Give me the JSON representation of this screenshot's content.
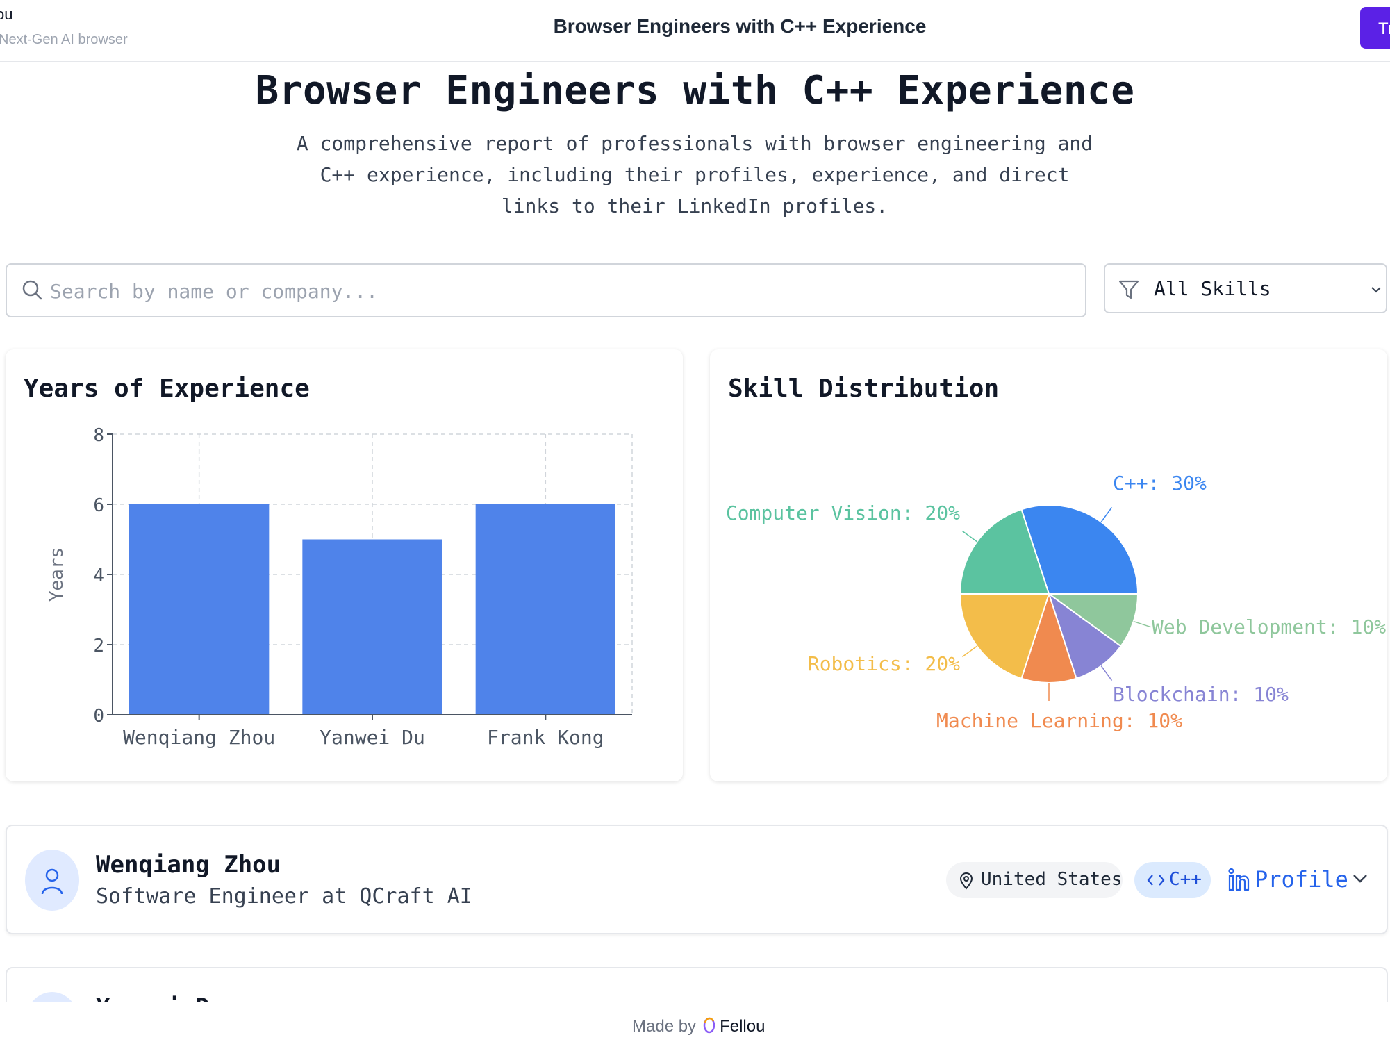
{
  "header": {
    "brand_name": "ou",
    "brand_tagline": "Next-Gen AI browser",
    "title": "Browser Engineers with C++ Experience",
    "cta_label": "Tr",
    "colors": {
      "cta": "#5b21e6"
    }
  },
  "hero": {
    "title": "Browser Engineers with C++ Experience",
    "description": "A comprehensive report of professionals with browser engineering and C++ experience, including their profiles, experience, and direct links to their LinkedIn profiles."
  },
  "search": {
    "placeholder": "Search by name or company...",
    "value": "",
    "icon": "search-icon"
  },
  "filter": {
    "selected": "All Skills",
    "icon": "filter-icon"
  },
  "experience_chart": {
    "title": "Years of Experience",
    "chart_data": {
      "type": "bar",
      "title": "Years of Experience",
      "categories": [
        "Wenqiang Zhou",
        "Yanwei Du",
        "Frank Kong"
      ],
      "values": [
        6,
        5,
        6
      ],
      "xlabel": "",
      "ylabel": "Years",
      "ylim": [
        0,
        8
      ],
      "yticks": [
        "0",
        "2",
        "4",
        "6",
        "8"
      ],
      "grid": true,
      "color": "#4f83ea"
    }
  },
  "skill_chart": {
    "title": "Skill Distribution",
    "chart_data": {
      "type": "pie",
      "title": "Skill Distribution",
      "slices": [
        {
          "label": "C++: 30%",
          "value": 30,
          "color": "#3b86f0"
        },
        {
          "label": "Web Development: 10%",
          "value": 10,
          "color": "#8fc79c"
        },
        {
          "label": "Blockchain: 10%",
          "value": 10,
          "color": "#8784d4"
        },
        {
          "label": "Machine Learning: 10%",
          "value": 10,
          "color": "#f08a4f"
        },
        {
          "label": "Robotics: 20%",
          "value": 20,
          "color": "#f3bd4a"
        },
        {
          "label": "Computer Vision: 20%",
          "value": 20,
          "color": "#5bc3a0"
        }
      ]
    }
  },
  "people": [
    {
      "name": "Wenqiang Zhou",
      "role": "Software Engineer at QCraft AI",
      "location": "United States",
      "skill": "C++",
      "profile_label": "Profile"
    },
    {
      "name": "Yanwei Du"
    }
  ],
  "footer": {
    "made_by": "Made by",
    "brand": "Fellou"
  }
}
